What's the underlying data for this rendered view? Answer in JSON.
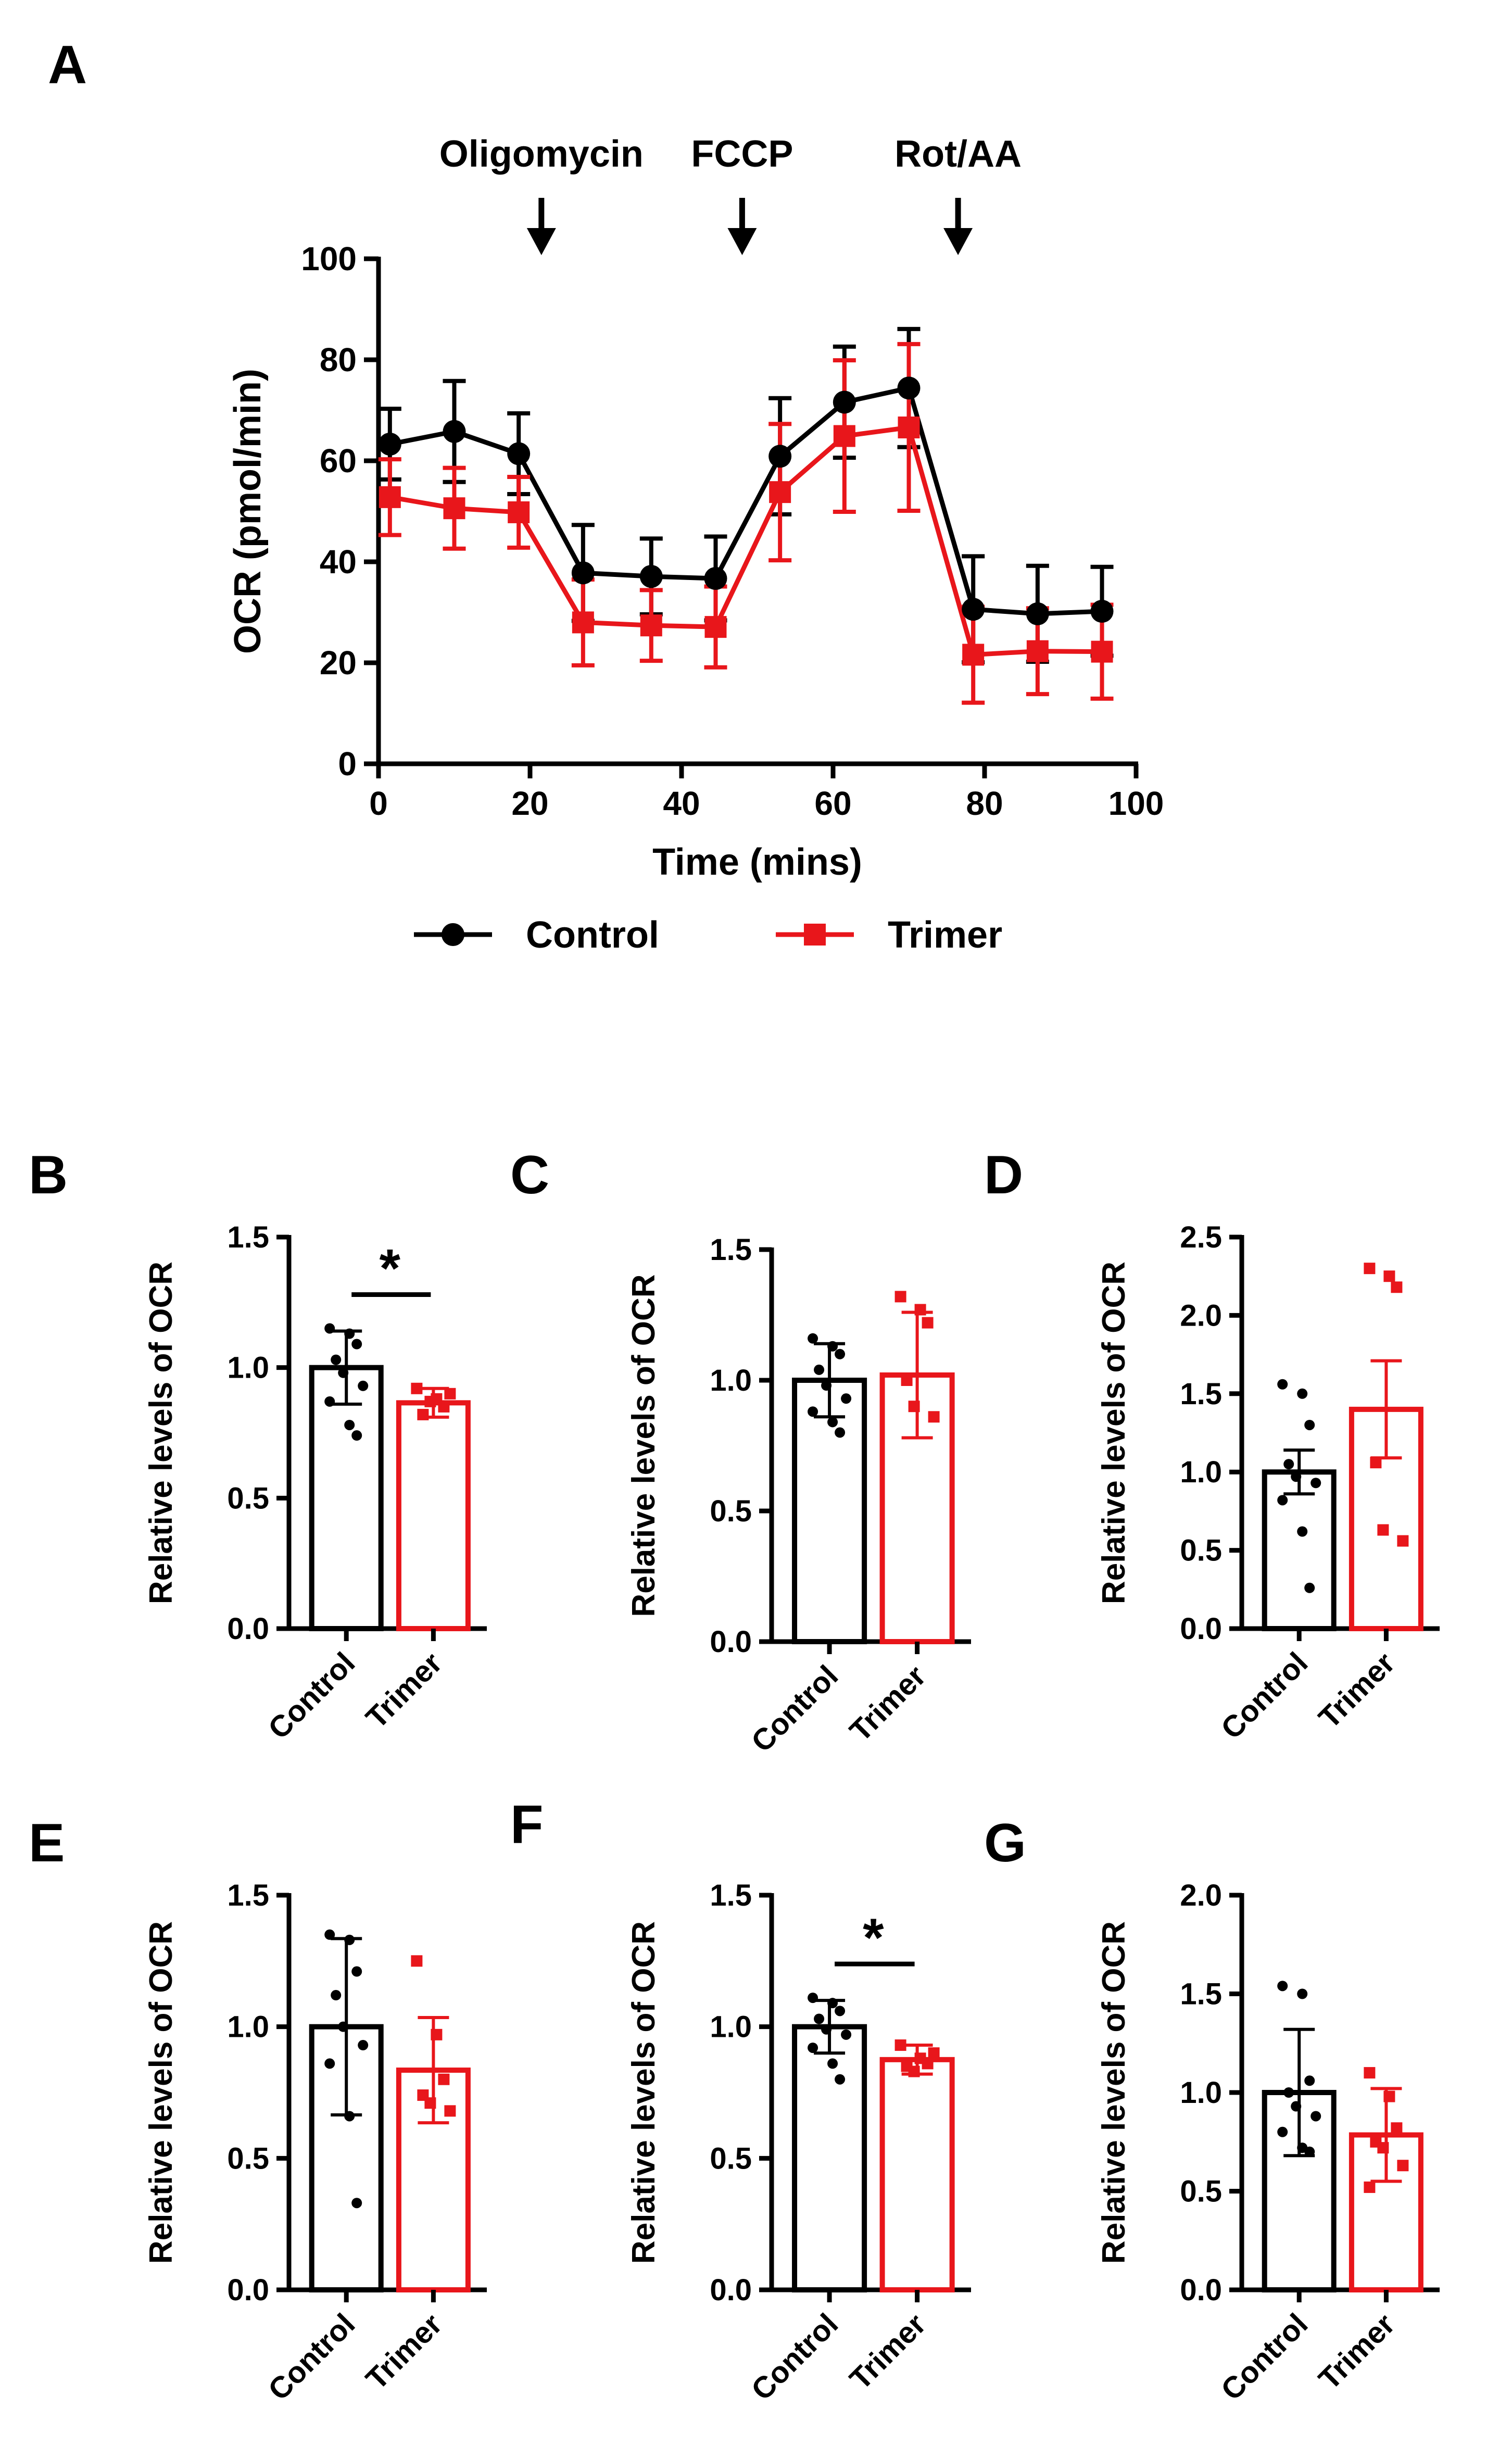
{
  "colors": {
    "control": "#000000",
    "trimer": "#e8161b"
  },
  "chart_data": [
    {
      "id": "A",
      "type": "line",
      "panel_label": "A",
      "xlabel": "Time (mins)",
      "ylabel": "OCR (pmol/min)",
      "xlim": [
        0,
        100
      ],
      "ylim": [
        0,
        100
      ],
      "x_ticks": [
        "0",
        "20",
        "40",
        "60",
        "80",
        "100"
      ],
      "y_ticks": [
        "0",
        "20",
        "40",
        "60",
        "80",
        "100"
      ],
      "annotations": [
        {
          "label": "Oligomycin",
          "x": 21.5
        },
        {
          "label": "FCCP",
          "x": 48
        },
        {
          "label": "Rot/AA",
          "x": 76.5
        }
      ],
      "legend": [
        "Control",
        "Trimer"
      ],
      "series": [
        {
          "name": "Control",
          "color": "#000000",
          "marker": "circle",
          "x": [
            1.5,
            10,
            18.5,
            27,
            36,
            44.5,
            53,
            61.5,
            70,
            78.5,
            87,
            95.5
          ],
          "y": [
            63.3,
            65.8,
            61.4,
            37.8,
            37.1,
            36.7,
            60.9,
            71.6,
            74.4,
            30.6,
            29.7,
            30.2
          ],
          "err": [
            7.0,
            10.0,
            8.0,
            9.5,
            7.5,
            8.3,
            11.5,
            11.0,
            11.7,
            10.5,
            9.5,
            8.8
          ]
        },
        {
          "name": "Trimer",
          "color": "#e8161b",
          "marker": "square",
          "x": [
            1.5,
            10,
            18.5,
            27,
            36,
            44.5,
            53,
            61.5,
            70,
            78.5,
            87,
            95.5
          ],
          "y": [
            52.8,
            50.6,
            49.8,
            28.0,
            27.4,
            27.1,
            53.8,
            64.9,
            66.6,
            21.6,
            22.3,
            22.2
          ],
          "err": [
            7.5,
            8.0,
            7.0,
            8.5,
            7.0,
            8.0,
            13.5,
            15.0,
            16.5,
            9.5,
            8.5,
            9.3
          ]
        }
      ]
    },
    {
      "id": "B",
      "type": "bar",
      "panel_label": "B",
      "ylabel": "Relative levels of OCR",
      "categories": [
        "Control",
        "Trimer"
      ],
      "ylim": [
        0,
        1.5
      ],
      "y_ticks": [
        "0.0",
        "0.5",
        "1.0",
        "1.5"
      ],
      "values": [
        1.0,
        0.865
      ],
      "errors": [
        0.14,
        0.055
      ],
      "significance": "*",
      "points": [
        [
          1.15,
          1.13,
          1.09,
          1.03,
          0.98,
          0.93,
          0.87,
          0.78,
          0.74
        ],
        [
          0.92,
          0.88,
          0.85,
          0.82,
          0.87,
          0.9
        ]
      ]
    },
    {
      "id": "C",
      "type": "bar",
      "panel_label": "C",
      "ylabel": "Relative levels of OCR",
      "categories": [
        "Control",
        "Trimer"
      ],
      "ylim": [
        0,
        1.5
      ],
      "y_ticks": [
        "0.0",
        "0.5",
        "1.0",
        "1.5"
      ],
      "values": [
        1.0,
        1.02
      ],
      "errors": [
        0.14,
        0.24
      ],
      "significance": "",
      "points": [
        [
          1.16,
          1.13,
          1.1,
          1.04,
          0.98,
          0.93,
          0.88,
          0.84,
          0.8
        ],
        [
          1.32,
          1.27,
          1.22,
          1.0,
          0.9,
          0.86
        ]
      ]
    },
    {
      "id": "D",
      "type": "bar",
      "panel_label": "D",
      "ylabel": "Relative levels of OCR",
      "categories": [
        "Control",
        "Trimer"
      ],
      "ylim": [
        0,
        2.5
      ],
      "y_ticks": [
        "0.0",
        "0.5",
        "1.0",
        "1.5",
        "2.0",
        "2.5"
      ],
      "values": [
        1.0,
        1.4
      ],
      "errors": [
        0.14,
        0.31
      ],
      "significance": "",
      "points": [
        [
          1.56,
          1.5,
          1.3,
          1.05,
          0.97,
          0.93,
          0.82,
          0.62,
          0.26
        ],
        [
          2.3,
          2.25,
          2.18,
          1.06,
          0.63,
          0.56
        ]
      ]
    },
    {
      "id": "E",
      "type": "bar",
      "panel_label": "E",
      "ylabel": "Relative levels of OCR",
      "categories": [
        "Control",
        "Trimer"
      ],
      "ylim": [
        0,
        1.5
      ],
      "y_ticks": [
        "0.0",
        "0.5",
        "1.0",
        "1.5"
      ],
      "values": [
        1.0,
        0.835
      ],
      "errors": [
        0.335,
        0.2
      ],
      "significance": "",
      "points": [
        [
          1.35,
          1.33,
          1.21,
          1.12,
          1.0,
          0.93,
          0.86,
          0.66,
          0.33
        ],
        [
          1.25,
          0.97,
          0.8,
          0.74,
          0.71,
          0.68
        ]
      ]
    },
    {
      "id": "F",
      "type": "bar",
      "panel_label": "F",
      "ylabel": "Relative levels of OCR",
      "categories": [
        "Control",
        "Trimer"
      ],
      "ylim": [
        0,
        1.5
      ],
      "y_ticks": [
        "0.0",
        "0.5",
        "1.0",
        "1.5"
      ],
      "values": [
        1.0,
        0.875
      ],
      "errors": [
        0.1,
        0.055
      ],
      "significance": "*",
      "points": [
        [
          1.11,
          1.09,
          1.06,
          1.03,
          0.99,
          0.97,
          0.92,
          0.86,
          0.8
        ],
        [
          0.93,
          0.88,
          0.86,
          0.85,
          0.83,
          0.9
        ]
      ]
    },
    {
      "id": "G",
      "type": "bar",
      "panel_label": "G",
      "ylabel": "Relative levels of OCR",
      "categories": [
        "Control",
        "Trimer"
      ],
      "ylim": [
        0,
        2.0
      ],
      "y_ticks": [
        "0.0",
        "0.5",
        "1.0",
        "1.5",
        "2.0"
      ],
      "values": [
        1.0,
        0.785
      ],
      "errors": [
        0.32,
        0.235
      ],
      "significance": "",
      "points": [
        [
          1.54,
          1.5,
          1.06,
          1.0,
          0.93,
          0.88,
          0.8,
          0.72,
          0.7
        ],
        [
          1.1,
          0.98,
          0.82,
          0.75,
          0.72,
          0.63,
          0.52
        ]
      ]
    }
  ]
}
